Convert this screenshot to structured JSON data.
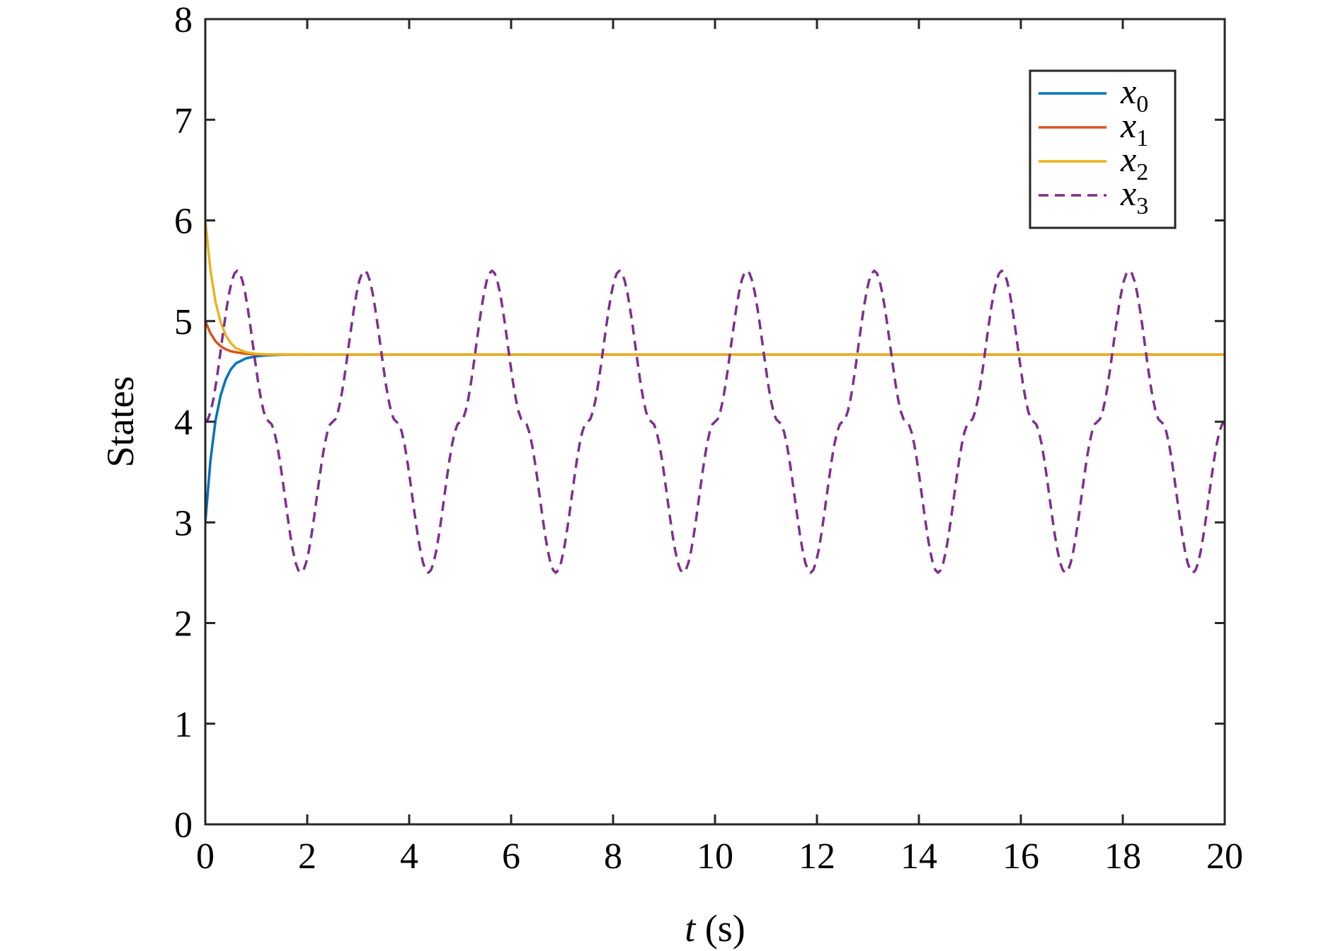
{
  "chart_data": {
    "type": "line",
    "xlabel_var": "t",
    "xlabel_unit": " (s)",
    "ylabel": "States",
    "xlim": [
      0,
      20
    ],
    "ylim": [
      0,
      8
    ],
    "xticks": [
      0,
      2,
      4,
      6,
      8,
      10,
      12,
      14,
      16,
      18,
      20
    ],
    "yticks": [
      0,
      1,
      2,
      3,
      4,
      5,
      6,
      7,
      8
    ],
    "grid": false,
    "legend_placement": "top-right",
    "series": [
      {
        "name": "x0",
        "label_base": "x",
        "label_sub": "0",
        "color": "#0072BD",
        "dash": "solid",
        "x": [
          0,
          0.1,
          0.2,
          0.3,
          0.4,
          0.5,
          0.6,
          0.8,
          1.0,
          1.2,
          1.5,
          2.0,
          3.0,
          5.0,
          10.0,
          15.0,
          20.0
        ],
        "y": [
          3.0,
          3.61,
          4.01,
          4.26,
          4.42,
          4.52,
          4.58,
          4.63,
          4.65,
          4.66,
          4.665,
          4.667,
          4.667,
          4.667,
          4.667,
          4.667,
          4.667
        ]
      },
      {
        "name": "x1",
        "label_base": "x",
        "label_sub": "1",
        "color": "#D95319",
        "dash": "solid",
        "x": [
          0,
          0.1,
          0.2,
          0.3,
          0.4,
          0.5,
          0.6,
          0.8,
          1.0,
          1.2,
          1.5,
          2.0,
          3.0,
          5.0,
          10.0,
          15.0,
          20.0
        ],
        "y": [
          5.0,
          4.88,
          4.8,
          4.75,
          4.72,
          4.7,
          4.69,
          4.675,
          4.67,
          4.668,
          4.667,
          4.667,
          4.667,
          4.667,
          4.667,
          4.667,
          4.667
        ]
      },
      {
        "name": "x2",
        "label_base": "x",
        "label_sub": "2",
        "color": "#EDB120",
        "dash": "solid",
        "x": [
          0,
          0.1,
          0.2,
          0.3,
          0.4,
          0.5,
          0.6,
          0.8,
          1.0,
          1.2,
          1.5,
          2.0,
          3.0,
          5.0,
          10.0,
          15.0,
          20.0
        ],
        "y": [
          6.0,
          5.51,
          5.19,
          4.99,
          4.86,
          4.78,
          4.73,
          4.69,
          4.675,
          4.67,
          4.668,
          4.667,
          4.667,
          4.667,
          4.667,
          4.667,
          4.667
        ]
      },
      {
        "name": "x3",
        "label_base": "x",
        "label_sub": "3",
        "color": "#7E2F8E",
        "dash": "dashed",
        "x": [
          0,
          0.625,
          1.25,
          1.875,
          2.5,
          3.125,
          3.75,
          4.375,
          5.0,
          5.625,
          6.25,
          6.875,
          7.5,
          8.125,
          8.75,
          9.375,
          10.0,
          10.625,
          11.25,
          11.875,
          12.5,
          13.125,
          13.75,
          14.375,
          15.0,
          15.625,
          16.25,
          16.875,
          17.5,
          18.125,
          18.75,
          19.375,
          20.0
        ],
        "y": [
          4.0,
          5.5,
          4.0,
          2.5,
          4.0,
          5.5,
          4.0,
          2.5,
          4.0,
          5.5,
          4.0,
          2.5,
          4.0,
          5.5,
          4.0,
          2.5,
          4.0,
          5.5,
          4.0,
          2.5,
          4.0,
          5.5,
          4.0,
          2.5,
          4.0,
          5.5,
          4.0,
          2.5,
          4.0,
          5.5,
          4.0,
          2.5,
          4.0
        ]
      }
    ]
  }
}
